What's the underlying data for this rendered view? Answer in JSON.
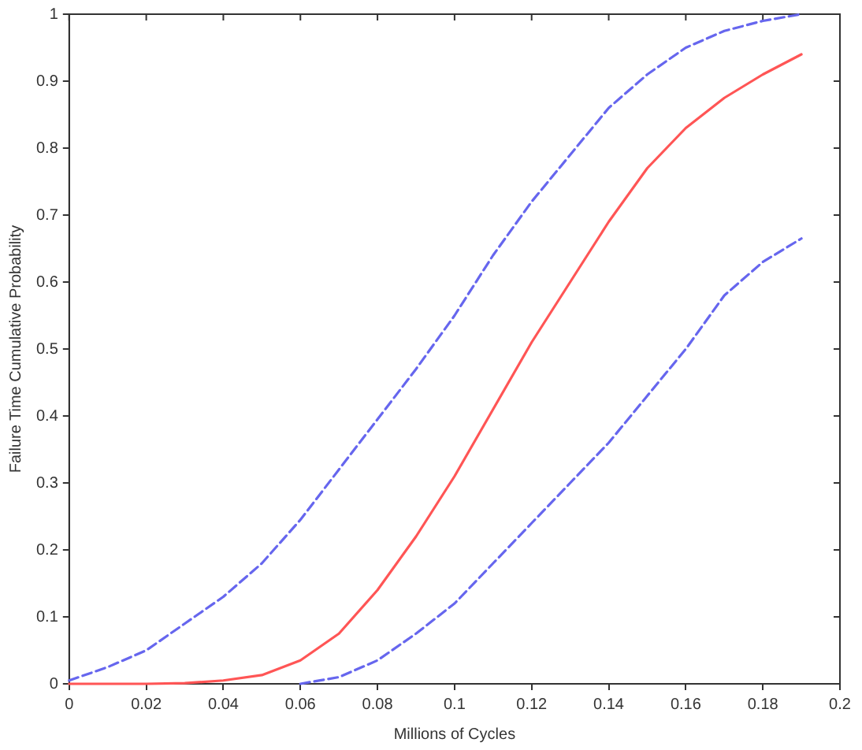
{
  "chart_data": {
    "type": "line",
    "xlabel": "Millions of Cycles",
    "ylabel": "Failure Time Cumulative Probability",
    "x": [
      0,
      0.01,
      0.02,
      0.03,
      0.04,
      0.05,
      0.06,
      0.07,
      0.08,
      0.09,
      0.1,
      0.11,
      0.12,
      0.13,
      0.14,
      0.15,
      0.16,
      0.17,
      0.18,
      0.19
    ],
    "series": [
      {
        "color": "#ff5555",
        "line_style": "solid",
        "values": [
          0,
          0,
          0,
          0.001,
          0.005,
          0.013,
          0.035,
          0.075,
          0.14,
          0.22,
          0.31,
          0.41,
          0.51,
          0.6,
          0.69,
          0.77,
          0.83,
          0.875,
          0.91,
          0.94
        ]
      },
      {
        "color": "#6666ee",
        "line_style": "dashed",
        "values": [
          0.005,
          0.025,
          0.05,
          0.09,
          0.13,
          0.18,
          0.245,
          0.32,
          0.395,
          0.47,
          0.55,
          0.64,
          0.72,
          0.79,
          0.86,
          0.91,
          0.95,
          0.975,
          0.99,
          1.0
        ]
      },
      {
        "color": "#6666ee",
        "line_style": "dashed",
        "values": [
          null,
          null,
          null,
          null,
          null,
          null,
          0,
          0.01,
          0.035,
          0.075,
          0.12,
          0.18,
          0.24,
          0.3,
          0.36,
          0.43,
          0.5,
          0.58,
          0.63,
          0.665
        ]
      }
    ],
    "xlim": [
      0,
      0.2
    ],
    "xticks": [
      0,
      0.02,
      0.04,
      0.06,
      0.08,
      0.1,
      0.12,
      0.14,
      0.16,
      0.18,
      0.2
    ],
    "ylim": [
      0,
      1
    ],
    "yticks": [
      0,
      0.1,
      0.2,
      0.3,
      0.4,
      0.5,
      0.6,
      0.7,
      0.8,
      0.9,
      1
    ],
    "grid": false,
    "legend": false,
    "marker": "none"
  }
}
